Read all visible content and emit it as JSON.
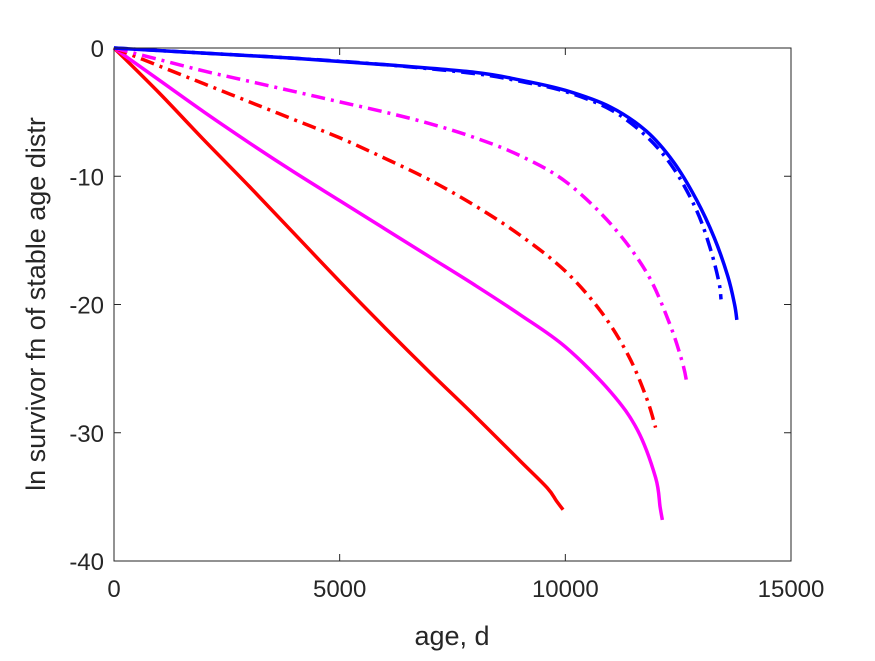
{
  "chart_data": {
    "type": "line",
    "title": "",
    "xlabel": "age, d",
    "ylabel": "ln survivor fn of stable age distr",
    "xlim": [
      0,
      15000
    ],
    "ylim": [
      -40,
      0
    ],
    "xticks": [
      0,
      5000,
      10000,
      15000
    ],
    "yticks": [
      0,
      -10,
      -20,
      -30,
      -40
    ],
    "grid": false,
    "legend": "none",
    "series": [
      {
        "color": "#ff0000",
        "style": "solid",
        "x": [
          0,
          1000,
          2000,
          3000,
          4000,
          5000,
          6000,
          7000,
          8000,
          9000,
          9600,
          9800,
          9950
        ],
        "y": [
          0,
          -3.5,
          -7.2,
          -10.8,
          -14.5,
          -18.2,
          -21.8,
          -25.3,
          -28.7,
          -32.2,
          -34.3,
          -35.3,
          -36
        ]
      },
      {
        "color": "#ff00ff",
        "style": "solid",
        "x": [
          0,
          1000,
          2000,
          3000,
          4000,
          5000,
          6000,
          7000,
          8000,
          9000,
          10000,
          11000,
          11600,
          12000,
          12100,
          12150
        ],
        "y": [
          0,
          -2.5,
          -5.0,
          -7.4,
          -9.7,
          -11.9,
          -14.1,
          -16.3,
          -18.5,
          -20.8,
          -23.3,
          -26.8,
          -29.8,
          -33.5,
          -35.8,
          -36.8
        ]
      },
      {
        "color": "#ff0000",
        "style": "dashdot",
        "x": [
          0,
          1000,
          2000,
          3000,
          4000,
          5000,
          6000,
          7000,
          8000,
          9000,
          10000,
          10800,
          11400,
          11800,
          12000
        ],
        "y": [
          0,
          -1.4,
          -2.8,
          -4.2,
          -5.6,
          -7.0,
          -8.6,
          -10.3,
          -12.3,
          -14.6,
          -17.4,
          -20.6,
          -24.0,
          -27.3,
          -29.6
        ]
      },
      {
        "color": "#ff00ff",
        "style": "dashdot",
        "x": [
          0,
          1000,
          2000,
          3000,
          4000,
          5000,
          6000,
          7000,
          8000,
          9000,
          10000,
          11000,
          11800,
          12300,
          12600,
          12700
        ],
        "y": [
          0,
          -0.9,
          -1.8,
          -2.6,
          -3.4,
          -4.2,
          -5.0,
          -5.9,
          -7.0,
          -8.4,
          -10.4,
          -13.7,
          -17.5,
          -21.4,
          -24.6,
          -26.3
        ]
      },
      {
        "color": "#0000ff",
        "style": "dashdot",
        "x": [
          0,
          2000,
          4000,
          6000,
          8000,
          9000,
          10000,
          11000,
          11800,
          12400,
          12900,
          13200,
          13400,
          13450
        ],
        "y": [
          0,
          -0.4,
          -0.8,
          -1.3,
          -2.0,
          -2.6,
          -3.4,
          -4.8,
          -6.9,
          -9.4,
          -12.6,
          -15.5,
          -18.2,
          -19.6
        ]
      },
      {
        "color": "#0000ff",
        "style": "solid",
        "x": [
          0,
          2000,
          4000,
          6000,
          8000,
          9000,
          10000,
          11000,
          11800,
          12400,
          12900,
          13300,
          13600,
          13750,
          13800
        ],
        "y": [
          0,
          -0.4,
          -0.8,
          -1.3,
          -1.9,
          -2.5,
          -3.3,
          -4.6,
          -6.5,
          -8.9,
          -11.8,
          -14.8,
          -17.8,
          -20.0,
          -21.2
        ]
      }
    ]
  }
}
